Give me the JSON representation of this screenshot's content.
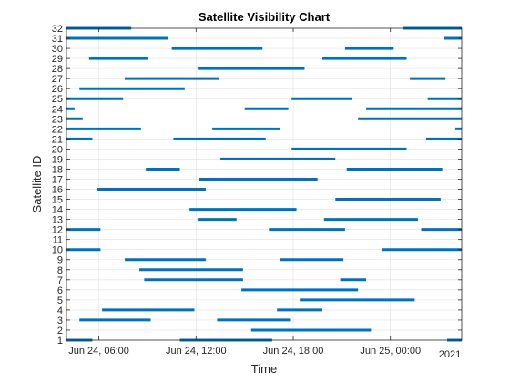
{
  "chart_data": {
    "type": "timeline",
    "title": "Satellite Visibility Chart",
    "xlabel": "Time",
    "ylabel": "Satellite ID",
    "x_unit": "hours",
    "x_epoch": "2021-06-24 00:00",
    "x_range_hours": [
      4,
      28.4
    ],
    "xticks": [
      {
        "hour": 6,
        "label": "Jun 24, 06:00"
      },
      {
        "hour": 12,
        "label": "Jun 24, 12:00"
      },
      {
        "hour": 18,
        "label": "Jun 24, 18:00"
      },
      {
        "hour": 24,
        "label": "Jun 25, 00:00"
      }
    ],
    "x_secondary_label": "2021",
    "ylim": [
      1,
      32
    ],
    "grid": true,
    "bar_color": "#0072BD",
    "series": [
      {
        "id": 32,
        "intervals": [
          [
            4.0,
            8.0
          ],
          [
            24.8,
            28.4
          ]
        ]
      },
      {
        "id": 31,
        "intervals": [
          [
            4.0,
            10.3
          ],
          [
            27.3,
            28.4
          ]
        ]
      },
      {
        "id": 30,
        "intervals": [
          [
            10.5,
            16.1
          ],
          [
            21.2,
            24.2
          ]
        ]
      },
      {
        "id": 29,
        "intervals": [
          [
            5.4,
            9.0
          ],
          [
            19.8,
            25.0
          ]
        ]
      },
      {
        "id": 28,
        "intervals": [
          [
            12.1,
            18.7
          ]
        ]
      },
      {
        "id": 27,
        "intervals": [
          [
            7.6,
            13.4
          ],
          [
            25.2,
            27.4
          ]
        ]
      },
      {
        "id": 26,
        "intervals": [
          [
            4.8,
            11.3
          ]
        ]
      },
      {
        "id": 25,
        "intervals": [
          [
            4.0,
            7.5
          ],
          [
            17.9,
            21.6
          ],
          [
            26.3,
            28.4
          ]
        ]
      },
      {
        "id": 24,
        "intervals": [
          [
            4.0,
            4.5
          ],
          [
            15.0,
            17.7
          ],
          [
            22.5,
            28.4
          ]
        ]
      },
      {
        "id": 23,
        "intervals": [
          [
            4.0,
            5.0
          ],
          [
            22.0,
            28.4
          ]
        ]
      },
      {
        "id": 22,
        "intervals": [
          [
            4.0,
            8.6
          ],
          [
            13.0,
            17.2
          ],
          [
            28.0,
            28.4
          ]
        ]
      },
      {
        "id": 21,
        "intervals": [
          [
            4.0,
            5.6
          ],
          [
            10.6,
            16.3
          ],
          [
            26.2,
            28.4
          ]
        ]
      },
      {
        "id": 20,
        "intervals": [
          [
            17.9,
            25.0
          ]
        ]
      },
      {
        "id": 19,
        "intervals": [
          [
            13.5,
            20.6
          ]
        ]
      },
      {
        "id": 18,
        "intervals": [
          [
            8.9,
            11.0
          ],
          [
            21.3,
            27.2
          ]
        ]
      },
      {
        "id": 17,
        "intervals": [
          [
            12.2,
            19.5
          ]
        ]
      },
      {
        "id": 16,
        "intervals": [
          [
            5.9,
            12.6
          ]
        ]
      },
      {
        "id": 15,
        "intervals": [
          [
            20.6,
            27.1
          ]
        ]
      },
      {
        "id": 14,
        "intervals": [
          [
            11.6,
            18.2
          ]
        ]
      },
      {
        "id": 13,
        "intervals": [
          [
            12.1,
            14.5
          ],
          [
            19.9,
            25.7
          ]
        ]
      },
      {
        "id": 12,
        "intervals": [
          [
            4.0,
            6.1
          ],
          [
            16.5,
            21.2
          ],
          [
            25.9,
            28.4
          ]
        ]
      },
      {
        "id": 11,
        "intervals": []
      },
      {
        "id": 10,
        "intervals": [
          [
            4.0,
            6.1
          ],
          [
            23.5,
            28.4
          ]
        ]
      },
      {
        "id": 9,
        "intervals": [
          [
            7.6,
            12.6
          ],
          [
            17.2,
            21.1
          ]
        ]
      },
      {
        "id": 8,
        "intervals": [
          [
            8.5,
            14.9
          ]
        ]
      },
      {
        "id": 7,
        "intervals": [
          [
            8.8,
            14.9
          ],
          [
            20.9,
            22.5
          ]
        ]
      },
      {
        "id": 6,
        "intervals": [
          [
            14.8,
            22.0
          ]
        ]
      },
      {
        "id": 5,
        "intervals": [
          [
            18.4,
            25.5
          ]
        ]
      },
      {
        "id": 4,
        "intervals": [
          [
            6.2,
            11.9
          ],
          [
            17.0,
            19.8
          ]
        ]
      },
      {
        "id": 3,
        "intervals": [
          [
            4.8,
            9.2
          ],
          [
            13.3,
            17.8
          ]
        ]
      },
      {
        "id": 2,
        "intervals": [
          [
            15.4,
            22.8
          ]
        ]
      },
      {
        "id": 1,
        "intervals": [
          [
            4.0,
            5.6
          ],
          [
            11.0,
            16.7
          ],
          [
            27.5,
            28.4
          ]
        ]
      }
    ]
  }
}
